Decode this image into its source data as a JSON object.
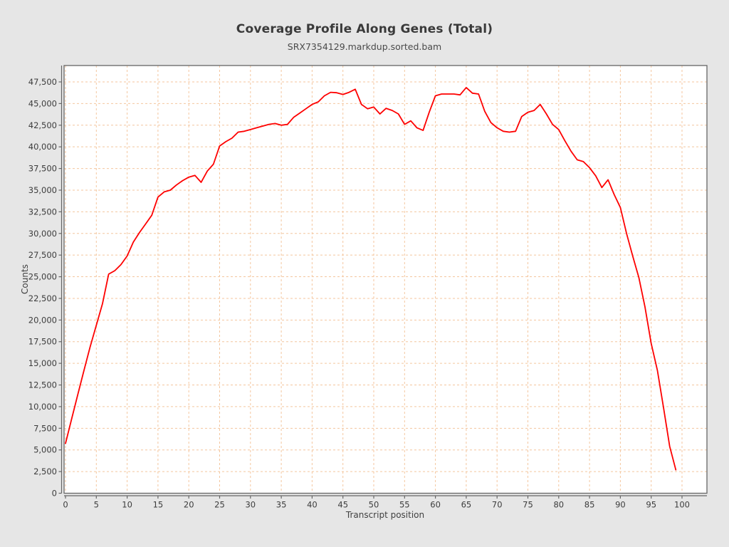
{
  "page": {
    "title": "Coverage Profile Along Genes (Total)",
    "subtitle": "SRX7354129.markdup.sorted.bam",
    "background_color": "#e6e6e6"
  },
  "chart_data": {
    "type": "line",
    "title": "Coverage Profile Along Genes (Total)",
    "subtitle": "SRX7354129.markdup.sorted.bam",
    "xlabel": "Transcript position",
    "ylabel": "Counts",
    "xlim": [
      0,
      104
    ],
    "ylim": [
      0,
      49400
    ],
    "grid": {
      "style": "dashed",
      "color": "#f4c69e"
    },
    "plot_background": "#ffffff",
    "outer_background": "#e6e6e6",
    "axis_color": "#666666",
    "text_color": "#3c3c3c",
    "legend": "none",
    "x_ticks": [
      0,
      5,
      10,
      15,
      20,
      25,
      30,
      35,
      40,
      45,
      50,
      55,
      60,
      65,
      70,
      75,
      80,
      85,
      90,
      95,
      100
    ],
    "y_ticks": [
      0,
      2500,
      5000,
      7500,
      10000,
      12500,
      15000,
      17500,
      20000,
      22500,
      25000,
      27500,
      30000,
      32500,
      35000,
      37500,
      40000,
      42500,
      45000,
      47500
    ],
    "series": [
      {
        "color": "#fe0000",
        "x_start": 0,
        "x_step": 1,
        "values": [
          5750,
          8600,
          11400,
          14200,
          16900,
          19400,
          21900,
          25300,
          25700,
          26400,
          27400,
          29000,
          30100,
          31100,
          32100,
          34200,
          34800,
          35000,
          35600,
          36100,
          36500,
          36700,
          35900,
          37200,
          38000,
          40100,
          40600,
          41000,
          41700,
          41800,
          42000,
          42200,
          42400,
          42600,
          42700,
          42500,
          42600,
          43400,
          43900,
          44400,
          44900,
          45200,
          45900,
          46300,
          46250,
          46050,
          46300,
          46650,
          44900,
          44400,
          44600,
          43800,
          44450,
          44200,
          43800,
          42600,
          43000,
          42200,
          41900,
          44000,
          45900,
          46100,
          46100,
          46100,
          46000,
          46850,
          46200,
          46100,
          44100,
          42800,
          42200,
          41800,
          41700,
          41800,
          43500,
          44000,
          44200,
          44900,
          43800,
          42600,
          42000,
          40700,
          39500,
          38500,
          38300,
          37600,
          36650,
          35300,
          36200,
          34500,
          33000,
          30000,
          27400,
          24900,
          21500,
          17300,
          14200,
          9900,
          5400,
          2700
        ]
      }
    ]
  }
}
